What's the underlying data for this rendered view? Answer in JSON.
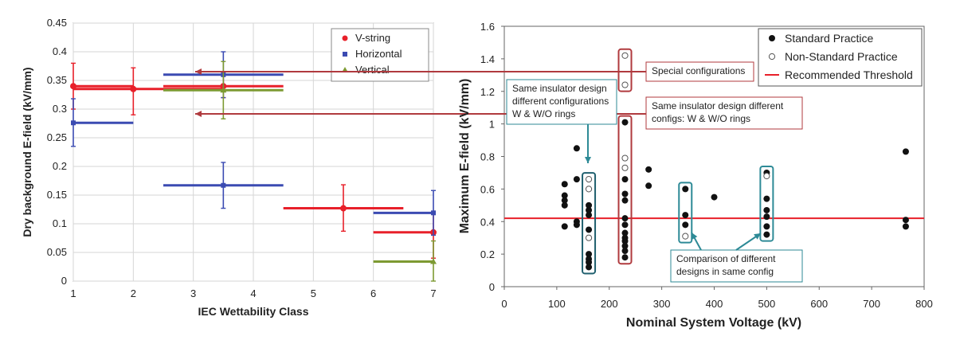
{
  "chart_data": [
    {
      "type": "scatter",
      "xlabel": "IEC Wettability Class",
      "ylabel": "Dry background E-field (kV/mm)",
      "xlim": [
        1,
        7
      ],
      "ylim": [
        0,
        0.45
      ],
      "xticks": [
        "1",
        "2",
        "3",
        "4",
        "5",
        "6",
        "7"
      ],
      "yticks": [
        "0",
        "0.05",
        "0.1",
        "0.15",
        "0.2",
        "0.25",
        "0.3",
        "0.35",
        "0.4",
        "0.45"
      ],
      "grid": true,
      "legend_position": "top-right",
      "series": [
        {
          "name": "V-string",
          "color": "#e8202a",
          "marker": "circle",
          "points": [
            {
              "x": 1,
              "y": 0.34,
              "xerr": [
                1,
                2
              ],
              "yerr": [
                0.3,
                0.38
              ]
            },
            {
              "x": 2,
              "y": 0.335,
              "xerr": [
                1,
                3.5
              ],
              "yerr": [
                0.29,
                0.372
              ]
            },
            {
              "x": 3.5,
              "y": 0.34,
              "xerr": [
                2.5,
                4.5
              ],
              "yerr": [
                0.32,
                0.36
              ]
            },
            {
              "x": 5.5,
              "y": 0.127,
              "xerr": [
                4.5,
                6.5
              ],
              "yerr": [
                0.087,
                0.168
              ]
            },
            {
              "x": 7,
              "y": 0.085,
              "xerr": [
                6,
                7
              ],
              "yerr": [
                0.04,
                0.12
              ]
            }
          ]
        },
        {
          "name": "Horizontal",
          "color": "#3b4bb2",
          "marker": "square",
          "points": [
            {
              "x": 1,
              "y": 0.276,
              "xerr": [
                1,
                2
              ],
              "yerr": [
                0.235,
                0.318
              ]
            },
            {
              "x": 3.5,
              "y": 0.36,
              "xerr": [
                2.5,
                4.5
              ],
              "yerr": [
                0.32,
                0.4
              ]
            },
            {
              "x": 3.5,
              "y": 0.167,
              "xerr": [
                2.5,
                4.5
              ],
              "yerr": [
                0.127,
                0.207
              ]
            },
            {
              "x": 7,
              "y": 0.119,
              "xerr": [
                6,
                7
              ],
              "yerr": [
                0.08,
                0.158
              ]
            }
          ]
        },
        {
          "name": "Vertical",
          "color": "#7d9a32",
          "marker": "triangle",
          "points": [
            {
              "x": 3.5,
              "y": 0.333,
              "xerr": [
                2.5,
                4.5
              ],
              "yerr": [
                0.283,
                0.383
              ]
            },
            {
              "x": 7,
              "y": 0.034,
              "xerr": [
                6,
                7
              ],
              "yerr": [
                0,
                0.07
              ]
            }
          ]
        }
      ]
    },
    {
      "type": "scatter",
      "xlabel": "Nominal System Voltage (kV)",
      "ylabel": "Maximum E-field (kV/mm)",
      "xlim": [
        0,
        800
      ],
      "ylim": [
        0,
        1.6
      ],
      "xticks": [
        "0",
        "100",
        "200",
        "300",
        "400",
        "500",
        "600",
        "700",
        "800"
      ],
      "yticks": [
        "0",
        "0.2",
        "0.4",
        "0.6",
        "0.8",
        "1",
        "1.2",
        "1.4",
        "1.6"
      ],
      "grid": false,
      "legend_position": "top-right",
      "threshold": {
        "name": "Recommended Threshold",
        "y": 0.42,
        "color": "#e8202a"
      },
      "series": [
        {
          "name": "Standard Practice",
          "marker": "filled-circle",
          "color": "#111111",
          "points": [
            [
              115,
              0.63
            ],
            [
              115,
              0.56
            ],
            [
              115,
              0.53
            ],
            [
              115,
              0.5
            ],
            [
              115,
              0.37
            ],
            [
              138,
              0.85
            ],
            [
              138,
              0.66
            ],
            [
              138,
              0.4
            ],
            [
              138,
              0.38
            ],
            [
              161,
              0.5
            ],
            [
              161,
              0.47
            ],
            [
              161,
              0.44
            ],
            [
              161,
              0.35
            ],
            [
              161,
              0.2
            ],
            [
              161,
              0.17
            ],
            [
              161,
              0.15
            ],
            [
              161,
              0.12
            ],
            [
              230,
              1.01
            ],
            [
              230,
              0.66
            ],
            [
              230,
              0.57
            ],
            [
              230,
              0.53
            ],
            [
              230,
              0.42
            ],
            [
              230,
              0.38
            ],
            [
              230,
              0.33
            ],
            [
              230,
              0.3
            ],
            [
              230,
              0.28
            ],
            [
              230,
              0.25
            ],
            [
              230,
              0.22
            ],
            [
              230,
              0.18
            ],
            [
              275,
              0.72
            ],
            [
              275,
              0.62
            ],
            [
              345,
              0.6
            ],
            [
              345,
              0.44
            ],
            [
              345,
              0.38
            ],
            [
              400,
              0.55
            ],
            [
              500,
              0.7
            ],
            [
              500,
              0.54
            ],
            [
              500,
              0.47
            ],
            [
              500,
              0.43
            ],
            [
              500,
              0.37
            ],
            [
              500,
              0.32
            ],
            [
              765,
              0.83
            ],
            [
              765,
              0.41
            ],
            [
              765,
              0.37
            ]
          ]
        },
        {
          "name": "Non-Standard Practice",
          "marker": "open-circle",
          "color": "#555555",
          "points": [
            [
              161,
              0.66
            ],
            [
              161,
              0.6
            ],
            [
              161,
              0.3
            ],
            [
              230,
              1.42
            ],
            [
              230,
              1.24
            ],
            [
              230,
              0.79
            ],
            [
              230,
              0.73
            ],
            [
              345,
              0.31
            ],
            [
              500,
              0.68
            ]
          ]
        }
      ],
      "annotations": [
        {
          "id": "special",
          "text": [
            "Special configurations"
          ],
          "color": "#b03a3e"
        },
        {
          "id": "same-rings",
          "text": [
            "Same insulator design different",
            "configs: W & W/O rings"
          ],
          "color": "#b03a3e"
        },
        {
          "id": "same-design",
          "text": [
            "Same insulator design",
            "different configurations",
            "W & W/O rings"
          ],
          "color": "#2d8a96"
        },
        {
          "id": "comparison",
          "text": [
            "Comparison of different",
            "designs in same config"
          ],
          "color": "#2d8a96"
        }
      ]
    }
  ]
}
